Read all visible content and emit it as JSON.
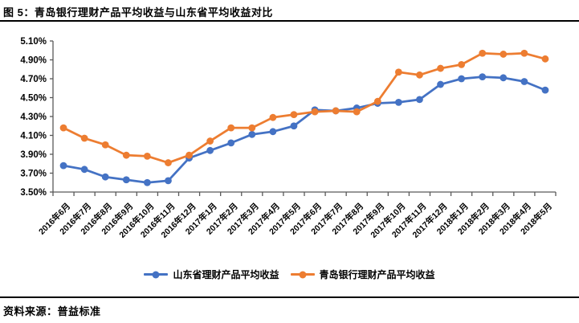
{
  "header": {
    "title": "图 5：青岛银行理财产品平均收益与山东省平均收益对比"
  },
  "footer": {
    "source": "资料来源：普益标准"
  },
  "colors": {
    "shandong_blue": "#4472C4",
    "qingdao_orange": "#ED7D31",
    "axis": "#595959",
    "divider": "#000000",
    "label_text": "#000000"
  },
  "chart_data": {
    "type": "line",
    "title": "青岛银行理财产品平均收益与山东省平均收益对比",
    "xlabel": "",
    "ylabel": "",
    "ylim": [
      3.5,
      5.1
    ],
    "ytick_step": 0.2,
    "ytick_labels": [
      "3.50%",
      "3.70%",
      "3.90%",
      "4.10%",
      "4.30%",
      "4.50%",
      "4.70%",
      "4.90%",
      "5.10%"
    ],
    "grid": false,
    "legend_position": "bottom",
    "marker": "circle",
    "categories": [
      "2016年6月",
      "2016年7月",
      "2016年8月",
      "2016年9月",
      "2016年10月",
      "2016年11月",
      "2016年12月",
      "2017年1月",
      "2017年2月",
      "2017年3月",
      "2017年4月",
      "2017年5月",
      "2017年6月",
      "2017年7月",
      "2017年8月",
      "2017年9月",
      "2017年10月",
      "2017年11月",
      "2017年12月",
      "2018年1月",
      "2018年2月",
      "2018年3月",
      "2018年4月",
      "2018年5月"
    ],
    "series": [
      {
        "name": "山东省理财产品平均收益",
        "color_key": "shandong_blue",
        "values": [
          3.78,
          3.74,
          3.66,
          3.63,
          3.6,
          3.62,
          3.86,
          3.94,
          4.02,
          4.11,
          4.14,
          4.2,
          4.37,
          4.36,
          4.39,
          4.44,
          4.45,
          4.48,
          4.64,
          4.7,
          4.72,
          4.71,
          4.67,
          4.58
        ]
      },
      {
        "name": "青岛银行理财产品平均收益",
        "color_key": "qingdao_orange",
        "values": [
          4.18,
          4.07,
          4.0,
          3.89,
          3.88,
          3.81,
          3.89,
          4.04,
          4.18,
          4.18,
          4.29,
          4.32,
          4.35,
          4.36,
          4.35,
          4.46,
          4.77,
          4.74,
          4.81,
          4.85,
          4.97,
          4.96,
          4.97,
          4.91
        ]
      }
    ]
  }
}
